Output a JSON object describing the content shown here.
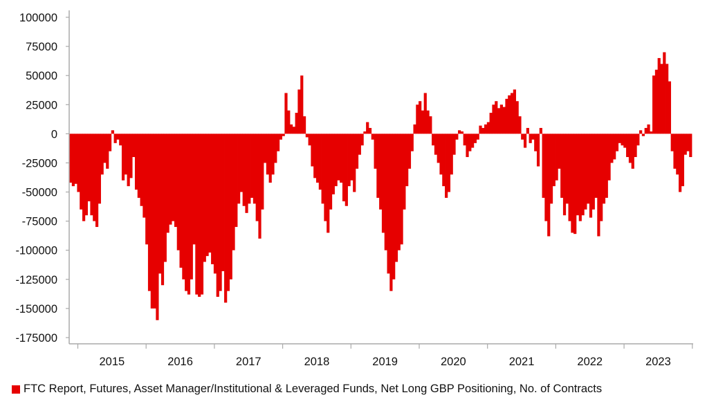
{
  "chart_data": {
    "type": "bar",
    "title": "",
    "xlabel": "",
    "ylabel": "",
    "ylim": [
      -175000,
      100000
    ],
    "yticks": [
      100000,
      75000,
      50000,
      25000,
      0,
      -25000,
      -50000,
      -75000,
      -100000,
      -125000,
      -150000,
      -175000
    ],
    "xtick_labels": [
      "2015",
      "2016",
      "2017",
      "2018",
      "2019",
      "2020",
      "2021",
      "2022",
      "2023"
    ],
    "grid": false,
    "legend_position": "bottom-left",
    "color": "#e60000",
    "series": [
      {
        "name": "FTC Report, Futures, Asset Manager/Institutional & Leveraged Funds, Net Long GBP Positioning, No. of Contracts",
        "values_by_year": {
          "2014": [
            -42000,
            -45000,
            -43000
          ],
          "2015": [
            -50000,
            -65000,
            -75000,
            -70000,
            -58000,
            -70000,
            -75000,
            -80000,
            -60000,
            -35000,
            -25000,
            -30000,
            -15000,
            3000,
            -8000,
            -5000,
            -10000,
            -40000,
            -35000,
            -45000,
            -38000,
            -20000,
            -48000,
            -55000,
            -62000,
            -72000
          ],
          "2016": [
            -95000,
            -135000,
            -150000,
            -150000,
            -160000,
            -120000,
            -130000,
            -110000,
            -85000,
            -78000,
            -75000,
            -80000,
            -100000,
            -115000,
            -125000,
            -135000,
            -138000,
            -125000,
            -95000,
            -138000,
            -140000,
            -138000,
            -110000,
            -105000,
            -102000,
            -112000
          ],
          "2017": [
            -120000,
            -140000,
            -135000,
            -118000,
            -145000,
            -135000,
            -125000,
            -100000,
            -80000,
            -60000,
            -50000,
            -62000,
            -68000,
            -60000,
            -55000,
            -60000,
            -75000,
            -90000,
            -65000,
            -25000,
            -35000,
            -42000,
            -35000,
            -25000,
            -15000,
            -5000
          ],
          "2018": [
            -2000,
            35000,
            20000,
            8000,
            6000,
            18000,
            38000,
            50000,
            15000,
            -3000,
            -10000,
            -28000,
            -38000,
            -42000,
            -48000,
            -60000,
            -75000,
            -85000,
            -65000,
            -52000,
            -45000,
            -40000,
            -42000,
            -58000,
            -62000,
            -45000
          ],
          "2019": [
            -40000,
            -50000,
            -30000,
            -18000,
            -10000,
            2000,
            10000,
            5000,
            -5000,
            -30000,
            -55000,
            -65000,
            -85000,
            -100000,
            -120000,
            -135000,
            -125000,
            -110000,
            -100000,
            -95000,
            -65000,
            -45000,
            -30000,
            -15000,
            8000,
            25000
          ],
          "2020": [
            28000,
            20000,
            35000,
            20000,
            15000,
            -10000,
            -18000,
            -25000,
            -35000,
            -45000,
            -55000,
            -50000,
            -35000,
            -18000,
            -5000,
            3000,
            2000,
            -10000,
            -20000,
            -15000,
            -12000,
            -8000,
            -5000,
            7000,
            5000,
            8000
          ],
          "2021": [
            10000,
            18000,
            25000,
            28000,
            22000,
            25000,
            23000,
            30000,
            33000,
            35000,
            38000,
            28000,
            15000,
            -5000,
            -12000,
            5000,
            -8000,
            -5000,
            -15000,
            -28000,
            5000,
            -55000,
            -75000,
            -88000,
            -60000,
            -45000
          ],
          "2022": [
            -40000,
            -30000,
            -55000,
            -70000,
            -60000,
            -75000,
            -85000,
            -86000,
            -70000,
            -75000,
            -70000,
            -65000,
            -60000,
            -72000,
            -65000,
            -55000,
            -88000,
            -75000,
            -60000,
            -55000,
            -40000,
            -25000,
            -22000,
            -15000,
            -8000,
            -10000
          ],
          "2023": [
            -12000,
            -20000,
            -25000,
            -30000,
            -20000,
            -10000,
            3000,
            -2000,
            5000,
            8000,
            2000,
            50000,
            55000,
            65000,
            60000,
            70000,
            60000,
            45000,
            -15000,
            -30000,
            -35000,
            -50000,
            -45000,
            -18000,
            -15000,
            -20000
          ]
        }
      }
    ]
  }
}
